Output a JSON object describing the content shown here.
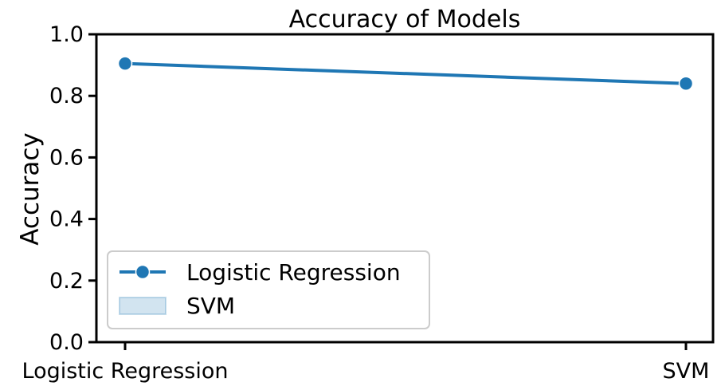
{
  "chart_data": {
    "type": "line",
    "title": "Accuracy of Models",
    "xlabel": "",
    "ylabel": "Accuracy",
    "categories": [
      "Logistic Regression",
      "SVM"
    ],
    "series": [
      {
        "name": "Logistic Regression",
        "values": [
          0.905,
          0.84
        ],
        "color": "#1f77b4",
        "marker": "circle"
      }
    ],
    "ylim": [
      0.0,
      1.0
    ],
    "yticks": [
      "0.0",
      "0.2",
      "0.4",
      "0.6",
      "0.8",
      "1.0"
    ],
    "grid": false,
    "legend": {
      "placement": "lower-left",
      "entries": [
        {
          "label": "Logistic Regression",
          "style": "line-marker",
          "color": "#1f77b4"
        },
        {
          "label": "SVM",
          "style": "patch",
          "color": "#1f77b4"
        }
      ]
    }
  }
}
